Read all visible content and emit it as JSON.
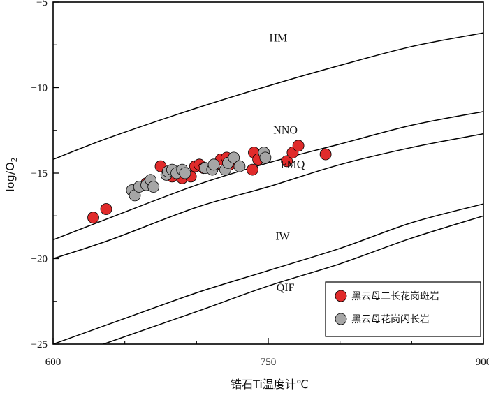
{
  "chart_data": {
    "type": "scatter",
    "xlabel": "锆石Ti温度计℃",
    "ylabel": "log/O",
    "ylabel_sub": "2",
    "xlim": [
      600,
      900
    ],
    "ylim": [
      -25,
      -5
    ],
    "x_ticks": [
      600,
      750,
      900
    ],
    "y_ticks": [
      -5,
      -10,
      -15,
      -20,
      -25
    ],
    "x_minor_ticks": [
      650,
      700,
      800,
      850
    ],
    "y_minor_ticks": [
      -7.5,
      -12.5,
      -17.5,
      -22.5
    ],
    "tick_labels": {
      "x": [
        "600",
        "750",
        "900"
      ],
      "y": [
        "−5",
        "−10",
        "−15",
        "−20",
        "−25"
      ]
    },
    "grid": false,
    "legend_position": "bottom-right",
    "buffers": [
      {
        "name": "HM",
        "label_at": [
          757,
          -7.3
        ],
        "points": [
          [
            600,
            -14.2
          ],
          [
            640,
            -12.9
          ],
          [
            700,
            -11.2
          ],
          [
            750,
            -9.9
          ],
          [
            800,
            -8.7
          ],
          [
            850,
            -7.6
          ],
          [
            900,
            -6.8
          ]
        ]
      },
      {
        "name": "NNO",
        "label_at": [
          762,
          -12.7
        ],
        "points": [
          [
            600,
            -18.9
          ],
          [
            640,
            -17.6
          ],
          [
            700,
            -15.7
          ],
          [
            750,
            -14.4
          ],
          [
            800,
            -13.3
          ],
          [
            850,
            -12.2
          ],
          [
            900,
            -11.4
          ]
        ]
      },
      {
        "name": "FMQ",
        "label_at": [
          767,
          -14.7
        ],
        "points": [
          [
            600,
            -20.0
          ],
          [
            640,
            -18.9
          ],
          [
            700,
            -17.0
          ],
          [
            750,
            -15.8
          ],
          [
            800,
            -14.5
          ],
          [
            850,
            -13.5
          ],
          [
            900,
            -12.7
          ]
        ]
      },
      {
        "name": "IW",
        "label_at": [
          760,
          -18.9
        ],
        "points": [
          [
            600,
            -25.0
          ],
          [
            640,
            -23.8
          ],
          [
            700,
            -22.0
          ],
          [
            750,
            -20.7
          ],
          [
            800,
            -19.4
          ],
          [
            850,
            -17.9
          ],
          [
            900,
            -16.8
          ]
        ]
      },
      {
        "name": "QIF",
        "label_at": [
          762,
          -21.9
        ],
        "points": [
          [
            635,
            -25.0
          ],
          [
            700,
            -23.1
          ],
          [
            750,
            -21.6
          ],
          [
            800,
            -20.3
          ],
          [
            850,
            -18.8
          ],
          [
            900,
            -17.5
          ]
        ]
      }
    ],
    "series": [
      {
        "name": "黑云母二长花岗斑岩",
        "color": "#e02b2b",
        "points": [
          [
            628,
            -17.6
          ],
          [
            637,
            -17.1
          ],
          [
            665,
            -15.6
          ],
          [
            675,
            -14.6
          ],
          [
            683,
            -15.2
          ],
          [
            688,
            -15.0
          ],
          [
            690,
            -15.3
          ],
          [
            696,
            -15.2
          ],
          [
            699,
            -14.6
          ],
          [
            702,
            -14.5
          ],
          [
            705,
            -14.7
          ],
          [
            712,
            -14.6
          ],
          [
            717,
            -14.2
          ],
          [
            721,
            -14.1
          ],
          [
            723,
            -14.5
          ],
          [
            739,
            -14.8
          ],
          [
            740,
            -13.8
          ],
          [
            743,
            -14.2
          ],
          [
            763,
            -14.3
          ],
          [
            767,
            -13.8
          ],
          [
            771,
            -13.4
          ],
          [
            790,
            -13.9
          ]
        ]
      },
      {
        "name": "黑云母花岗闪长岩",
        "color": "#a6a6a6",
        "points": [
          [
            655,
            -16.0
          ],
          [
            657,
            -16.3
          ],
          [
            660,
            -15.8
          ],
          [
            665,
            -15.7
          ],
          [
            668,
            -15.4
          ],
          [
            670,
            -15.8
          ],
          [
            679,
            -15.1
          ],
          [
            680,
            -14.9
          ],
          [
            683,
            -14.8
          ],
          [
            686,
            -15.0
          ],
          [
            690,
            -14.8
          ],
          [
            692,
            -15.0
          ],
          [
            706,
            -14.7
          ],
          [
            711,
            -14.8
          ],
          [
            712,
            -14.5
          ],
          [
            720,
            -14.8
          ],
          [
            722,
            -14.4
          ],
          [
            726,
            -14.1
          ],
          [
            730,
            -14.6
          ],
          [
            747,
            -13.8
          ],
          [
            748,
            -14.1
          ]
        ]
      }
    ]
  }
}
